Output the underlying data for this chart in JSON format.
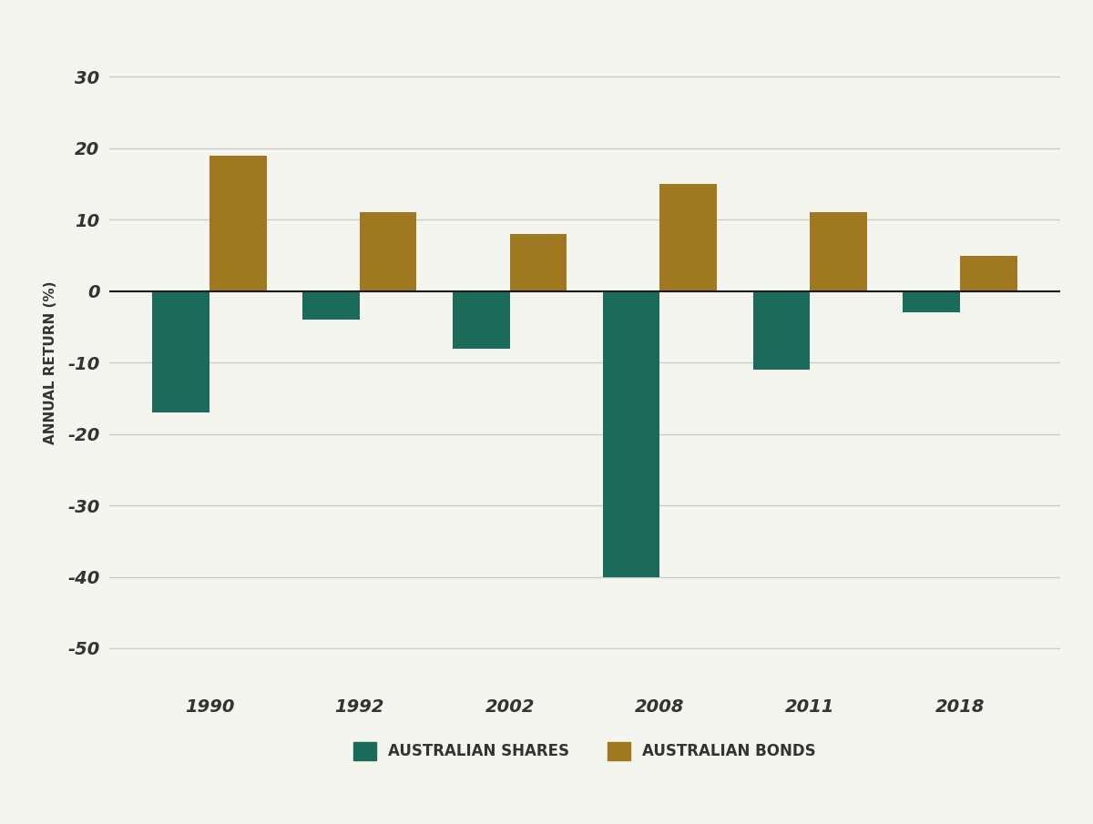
{
  "years": [
    "1990",
    "1992",
    "2002",
    "2008",
    "2011",
    "2018"
  ],
  "shares_values": [
    -17,
    -4,
    -8,
    -40,
    -11,
    -3
  ],
  "bonds_values": [
    19,
    11,
    8,
    15,
    11,
    5
  ],
  "shares_color": "#1a6b5a",
  "bonds_color": "#a07820",
  "background_color": "#f5f5f0",
  "grid_color": "#cccccc",
  "ylabel": "ANNUAL RETURN (%)",
  "legend_shares": "AUSTRALIAN SHARES",
  "legend_bonds": "AUSTRALIAN BONDS",
  "ylim": [
    -55,
    35
  ],
  "yticks": [
    30,
    20,
    10,
    0,
    -10,
    -20,
    -30,
    -40,
    -50
  ],
  "bar_width": 0.38,
  "spine_color": "#1a1a1a",
  "tick_label_color": "#333333",
  "font_family": "Arial"
}
